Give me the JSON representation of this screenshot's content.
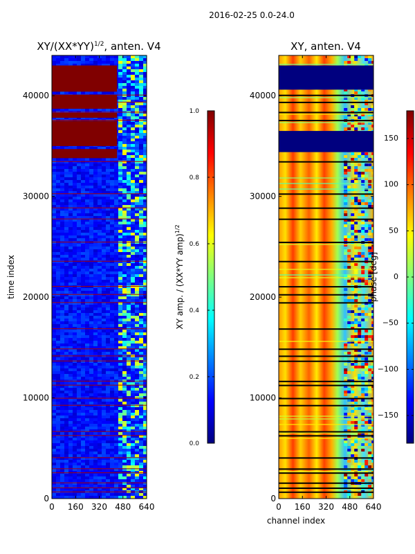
{
  "figure": {
    "suptitle": "2016-02-25 0.0-24.0"
  },
  "chart_data": [
    {
      "type": "heatmap",
      "title": "XY/(XX*YY)",
      "title_superscript": "1/2",
      "title_suffix": ", anten. V4",
      "xlabel": "",
      "ylabel": "time index",
      "xlim": [
        0,
        640
      ],
      "ylim": [
        0,
        44000
      ],
      "xticks": [
        0,
        160,
        320,
        480,
        640
      ],
      "yticks": [
        0,
        10000,
        20000,
        30000,
        40000
      ],
      "colorbar": {
        "label": "XY amp. / (XX*YY amp)",
        "label_superscript": "1/2",
        "range": [
          0.0,
          1.0
        ],
        "ticks": [
          "0.0",
          "0.2",
          "0.4",
          "0.6",
          "0.8",
          "1.0"
        ],
        "colormap": "jet"
      },
      "saturated_time_bands": [
        [
          33800,
          34700
        ],
        [
          35000,
          37500
        ],
        [
          37800,
          38300
        ],
        [
          38700,
          40100
        ],
        [
          40400,
          43000
        ]
      ],
      "bright_channel_range": [
        440,
        640
      ],
      "description_values": {
        "background_level": 0.1,
        "band_level": 1.0
      }
    },
    {
      "type": "heatmap",
      "title": "XY, anten. V4",
      "xlabel": "channel index",
      "ylabel": "",
      "xlim": [
        0,
        640
      ],
      "ylim": [
        0,
        44000
      ],
      "xticks": [
        0,
        160,
        320,
        480,
        640
      ],
      "yticks": [
        0,
        10000,
        20000,
        30000,
        40000
      ],
      "colorbar": {
        "label": "phase [deg]",
        "range": [
          -180,
          180
        ],
        "ticks": [
          "150",
          "100",
          "50",
          "0",
          "−50",
          "−100",
          "−150"
        ],
        "colormap": "jet"
      },
      "blank_time_bands": [
        [
          34400,
          36500
        ],
        [
          40600,
          43000
        ]
      ],
      "flagged_rows": [
        700,
        1100,
        1600,
        2600,
        3000,
        4100,
        6300,
        6700,
        9300,
        10000,
        11300,
        11700,
        13700,
        14200,
        14900,
        16900,
        19500,
        20300,
        21100,
        23600,
        25500,
        27800,
        28900,
        30300,
        33500,
        37600,
        38400,
        39400,
        40100
      ]
    }
  ]
}
